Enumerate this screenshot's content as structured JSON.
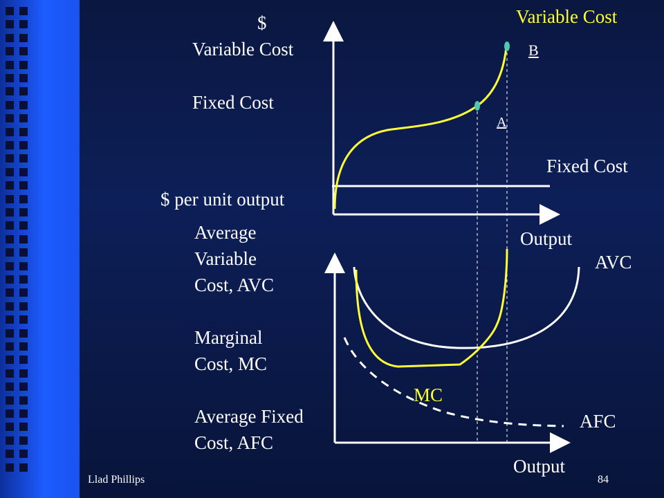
{
  "slide": {
    "top_axis_label": [
      "$",
      "Variable Cost",
      "",
      "Fixed Cost"
    ],
    "bottom_axis_label": "$ per unit output",
    "left_legend": [
      "Average",
      "Variable",
      "Cost, AVC",
      "",
      "Marginal",
      "Cost, MC",
      "",
      "Average Fixed",
      "Cost, AFC"
    ],
    "variable_cost_title": "Variable Cost",
    "fixed_cost_label": "Fixed Cost",
    "point_b": "B",
    "point_a": "A",
    "output_top": "Output",
    "output_bottom": "Output",
    "avc_label": "AVC",
    "mc_label": "MC",
    "afc_label": "AFC",
    "footer_author": "Llad Phillips",
    "page_number": "84"
  },
  "colors": {
    "background": "#0d1f58",
    "sidebar": "#1d5cff",
    "curve_yellow": "#ffff33",
    "axis_white": "#ffffff",
    "point_teal": "#4fc9b0"
  }
}
